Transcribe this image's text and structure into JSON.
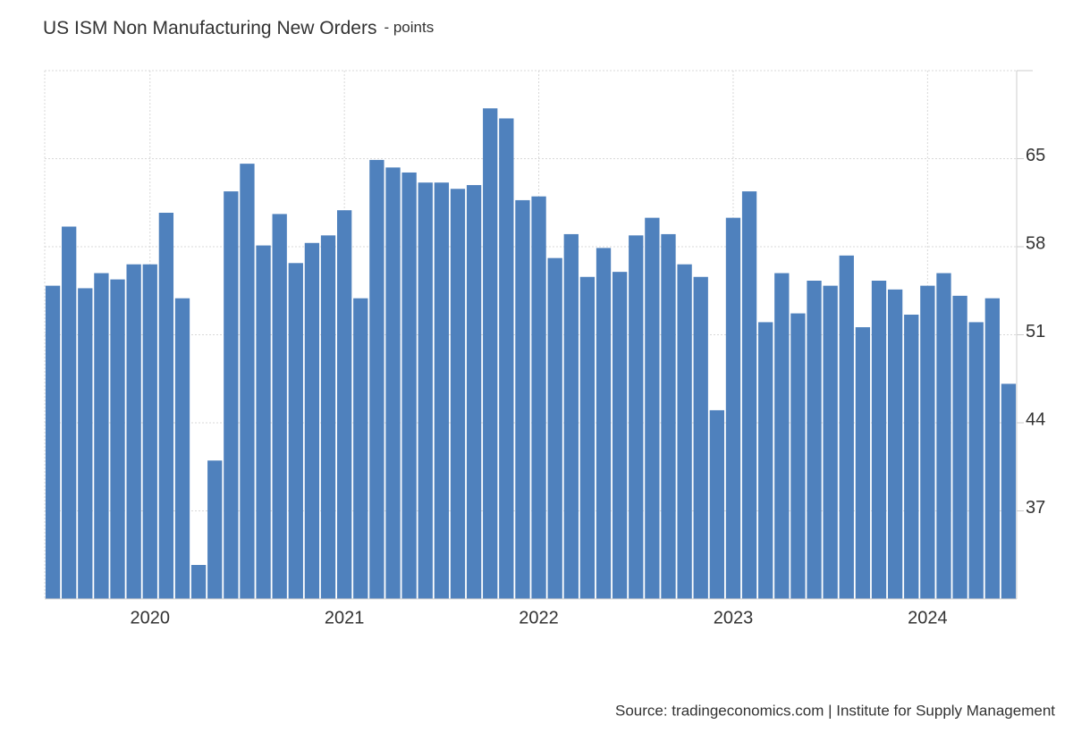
{
  "chart_data": {
    "type": "bar",
    "title": "US ISM Non Manufacturing New Orders",
    "subtitle": "- points",
    "source": "Source: tradingeconomics.com | Institute for Supply Management",
    "color": "#4f81bd",
    "categories": [
      null,
      null,
      null,
      null,
      null,
      null,
      "2020",
      null,
      null,
      null,
      null,
      null,
      null,
      null,
      null,
      null,
      null,
      null,
      "2021",
      null,
      null,
      null,
      null,
      null,
      null,
      null,
      null,
      null,
      null,
      null,
      "2022",
      null,
      null,
      null,
      null,
      null,
      null,
      null,
      null,
      null,
      null,
      null,
      "2023",
      null,
      null,
      null,
      null,
      null,
      null,
      null,
      null,
      null,
      null,
      null,
      "2024",
      null,
      null,
      null,
      null,
      null
    ],
    "values": [
      54.9,
      59.6,
      54.7,
      55.9,
      55.4,
      56.6,
      56.6,
      60.7,
      53.9,
      32.7,
      41.0,
      62.4,
      64.6,
      58.1,
      60.6,
      56.7,
      58.3,
      58.9,
      60.9,
      53.9,
      64.9,
      64.3,
      63.9,
      63.1,
      63.1,
      62.6,
      62.9,
      69.0,
      68.2,
      61.7,
      62.0,
      57.1,
      59.0,
      55.6,
      57.9,
      56.0,
      58.9,
      60.3,
      59.0,
      56.6,
      55.6,
      45.0,
      60.3,
      62.4,
      52.0,
      55.9,
      52.7,
      55.3,
      54.9,
      57.3,
      51.6,
      55.3,
      54.6,
      52.6,
      54.9,
      55.9,
      54.1,
      52.0,
      53.9,
      47.1
    ],
    "ylim": [
      30,
      72
    ],
    "yticks": [
      37,
      44,
      51,
      58,
      65
    ],
    "grid": true
  }
}
